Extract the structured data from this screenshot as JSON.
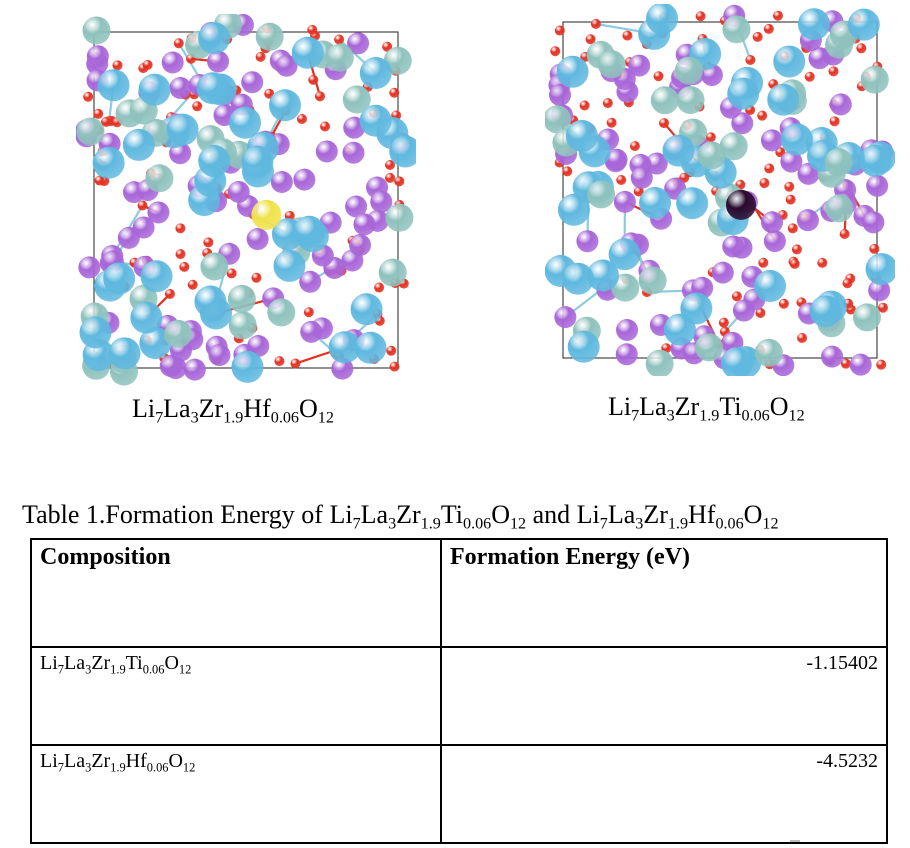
{
  "figures": {
    "left": {
      "caption": {
        "base": "Li",
        "n1": "7",
        "b2": "La",
        "n2": "3",
        "b3": "Zr",
        "n3": "1.9",
        "b4": "Hf",
        "n4": "0.06",
        "b5": "O",
        "n5": "12"
      },
      "dopant_color": "#f0e24a"
    },
    "right": {
      "caption": {
        "base": "Li",
        "n1": "7",
        "b2": "La",
        "n2": "3",
        "b3": "Zr",
        "n3": "1.9",
        "b4": "Ti",
        "n4": "0.06",
        "b5": "O",
        "n5": "12"
      },
      "dopant_color": "#2a0a2e"
    },
    "atom_colors": {
      "la": "#5fb8df",
      "zr": "#8fc2bd",
      "li": "#a866d8",
      "o": "#e33122",
      "bond": "#8ccbe0"
    }
  },
  "table": {
    "caption": {
      "prefix": "Table 1.Formation Energy of ",
      "f1": {
        "base": "Li",
        "n1": "7",
        "b2": "La",
        "n2": "3",
        "b3": "Zr",
        "n3": "1.9",
        "b4": "Ti",
        "n4": "0.06",
        "b5": "O",
        "n5": "12"
      },
      "mid": " and ",
      "f2": {
        "base": "Li",
        "n1": "7",
        "b2": "La",
        "n2": "3",
        "b3": "Zr",
        "n3": "1.9",
        "b4": "Hf",
        "n4": "0.06",
        "b5": "O",
        "n5": "12"
      }
    },
    "headers": [
      "Composition",
      "Formation Energy (eV)"
    ],
    "rows": [
      {
        "formula": {
          "base": "Li",
          "n1": "7",
          "b2": "La",
          "n2": "3",
          "b3": "Zr",
          "n3": "1.9",
          "b4": "Ti",
          "n4": "0.06",
          "b5": "O",
          "n5": "12"
        },
        "energy": "-1.15402"
      },
      {
        "formula": {
          "base": "Li",
          "n1": "7",
          "b2": "La",
          "n2": "3",
          "b3": "Zr",
          "n3": "1.9",
          "b4": "Hf",
          "n4": "0.06",
          "b5": "O",
          "n5": "12"
        },
        "energy": "-4.5232"
      }
    ]
  }
}
